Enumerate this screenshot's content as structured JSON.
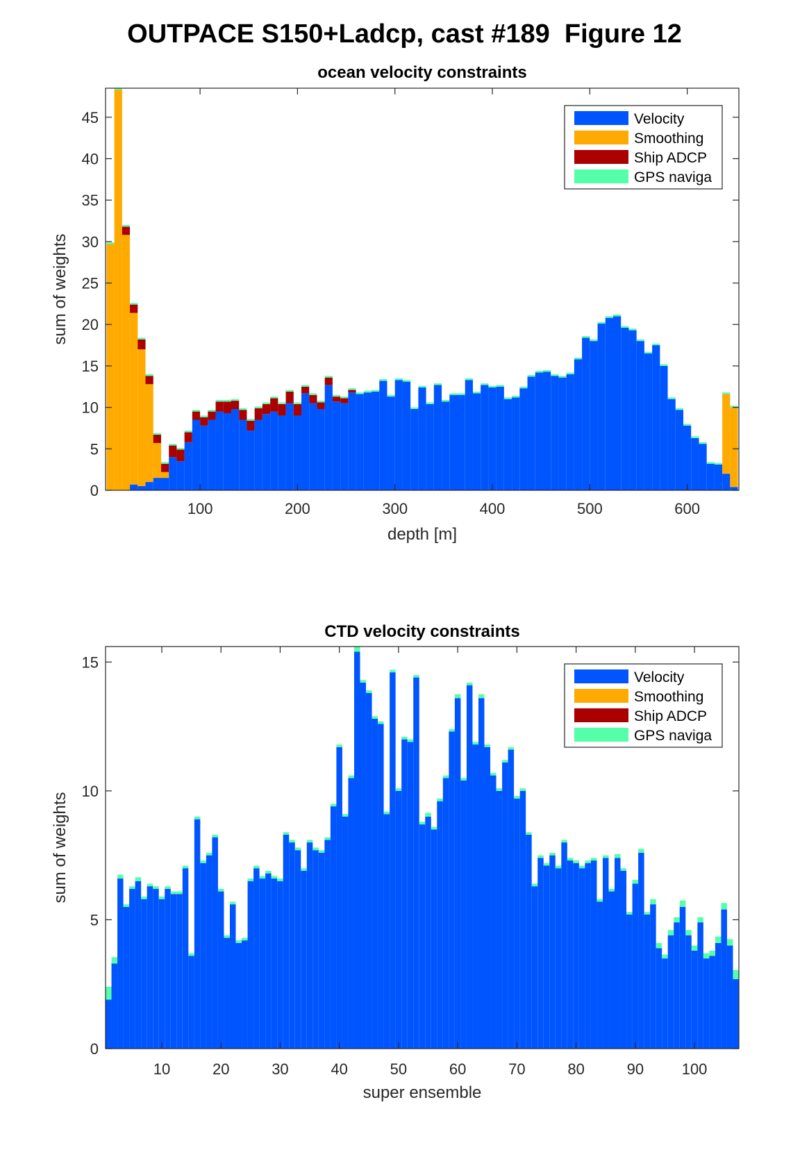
{
  "figure": {
    "title": "OUTPACE S150+Ladcp, cast #189  Figure 12"
  },
  "legend": {
    "items": [
      {
        "label": "Velocity",
        "color": "#0055FF"
      },
      {
        "label": "Smoothing",
        "color": "#FFAA00"
      },
      {
        "label": "Ship ADCP",
        "color": "#AA0000"
      },
      {
        "label": "GPS naviga",
        "color": "#55FFAA"
      }
    ]
  },
  "chart_data": [
    {
      "type": "bar",
      "stacked": true,
      "title": "ocean velocity constraints",
      "xlabel": "depth [m]",
      "ylabel": "sum of weights",
      "xlim": [
        3,
        653
      ],
      "ylim": [
        0,
        48.5
      ],
      "xticks": [
        100,
        200,
        300,
        400,
        500,
        600
      ],
      "yticks": [
        0,
        5,
        10,
        15,
        20,
        25,
        30,
        35,
        40,
        45
      ],
      "legend": "top-right",
      "bin_width": 8,
      "x": [
        8,
        16,
        24,
        32,
        40,
        48,
        56,
        64,
        72,
        80,
        88,
        96,
        104,
        112,
        120,
        128,
        136,
        144,
        152,
        160,
        168,
        176,
        184,
        192,
        200,
        208,
        216,
        224,
        232,
        240,
        248,
        256,
        264,
        272,
        280,
        288,
        296,
        304,
        312,
        320,
        328,
        336,
        344,
        352,
        360,
        368,
        376,
        384,
        392,
        400,
        408,
        416,
        424,
        432,
        440,
        448,
        456,
        464,
        472,
        480,
        488,
        496,
        504,
        512,
        520,
        528,
        536,
        544,
        552,
        560,
        568,
        576,
        584,
        592,
        600,
        608,
        616,
        624,
        632,
        640,
        648
      ],
      "series": [
        {
          "name": "Velocity",
          "values": [
            0,
            0,
            0,
            0.7,
            0.5,
            1.0,
            1.5,
            1.5,
            4,
            3.5,
            5.8,
            8.5,
            7.8,
            8.5,
            9.5,
            9.3,
            9.8,
            8.5,
            7.2,
            8.5,
            9.2,
            9.5,
            9.0,
            10.5,
            9.0,
            11.7,
            10.5,
            9.8,
            12.7,
            10.7,
            10.5,
            11.8,
            11.6,
            11.8,
            11.9,
            13.2,
            11.3,
            13.3,
            13.1,
            9.8,
            12.4,
            10.4,
            12.7,
            10.7,
            11.5,
            11.5,
            13.3,
            11.7,
            12.7,
            12.4,
            12.5,
            11.0,
            11.2,
            12.3,
            13.7,
            14.2,
            14.3,
            13.8,
            13.6,
            14.0,
            15.8,
            18.4,
            18.0,
            20.1,
            20.8,
            21.0,
            19.6,
            19.3,
            18.0,
            16.5,
            17.5,
            15.0,
            11.0,
            9.7,
            7.8,
            6.3,
            5.6,
            3.2,
            3.1,
            2.0,
            0.4
          ]
        },
        {
          "name": "Smoothing",
          "values": [
            29.7,
            48.3,
            30.8,
            20.7,
            16.5,
            11.8,
            4.2,
            0.7,
            0,
            0,
            0,
            0,
            0,
            0,
            0,
            0,
            0,
            0,
            0,
            0,
            0,
            0,
            0,
            0,
            0,
            0,
            0,
            0,
            0,
            0,
            0,
            0,
            0,
            0,
            0,
            0,
            0,
            0,
            0,
            0,
            0,
            0,
            0,
            0,
            0,
            0,
            0,
            0,
            0,
            0,
            0,
            0,
            0,
            0,
            0,
            0,
            0,
            0,
            0,
            0,
            0,
            0,
            0,
            0,
            0,
            0,
            0,
            0,
            0,
            0,
            0,
            0,
            0,
            0,
            0,
            0,
            0,
            0,
            0,
            9.6,
            9.6
          ]
        },
        {
          "name": "Ship ADCP",
          "values": [
            0,
            0,
            1.0,
            1.0,
            1.2,
            1.0,
            1.0,
            1.0,
            1.4,
            1.4,
            1.2,
            1.0,
            1.0,
            1.0,
            1.2,
            1.4,
            1.0,
            1.2,
            1.2,
            1.4,
            1.2,
            1.6,
            1.4,
            1.4,
            1.4,
            0.8,
            1.0,
            0.8,
            0.9,
            0.6,
            0.6,
            0.3,
            0,
            0,
            0,
            0,
            0,
            0,
            0,
            0,
            0,
            0,
            0,
            0,
            0,
            0,
            0,
            0,
            0,
            0,
            0,
            0,
            0,
            0,
            0,
            0,
            0,
            0,
            0,
            0,
            0,
            0,
            0,
            0,
            0,
            0,
            0,
            0,
            0,
            0,
            0,
            0,
            0,
            0,
            0,
            0,
            0,
            0,
            0,
            0,
            0
          ]
        },
        {
          "name": "GPS naviga",
          "values": [
            0.2,
            0.2,
            0.2,
            0.2,
            0.2,
            0.2,
            0.2,
            0.2,
            0.2,
            0.2,
            0.2,
            0.2,
            0.2,
            0.2,
            0.2,
            0.2,
            0.2,
            0.2,
            0.2,
            0.2,
            0.2,
            0.2,
            0.2,
            0.2,
            0.2,
            0.2,
            0.2,
            0.2,
            0.2,
            0.2,
            0.2,
            0.2,
            0.2,
            0.2,
            0.2,
            0.2,
            0.2,
            0.2,
            0.2,
            0.2,
            0.2,
            0.2,
            0.2,
            0.2,
            0.2,
            0.2,
            0.2,
            0.2,
            0.2,
            0.2,
            0.2,
            0.2,
            0.2,
            0.2,
            0.2,
            0.2,
            0.2,
            0.2,
            0.2,
            0.2,
            0.2,
            0.2,
            0.2,
            0.2,
            0.2,
            0.2,
            0.2,
            0.2,
            0.2,
            0.2,
            0.2,
            0.2,
            0.2,
            0.2,
            0.2,
            0.2,
            0.2,
            0.2,
            0.2,
            0.2,
            0.2
          ]
        }
      ]
    },
    {
      "type": "bar",
      "stacked": true,
      "title": "CTD velocity constraints",
      "xlabel": "super ensemble",
      "ylabel": "sum of weights",
      "xlim": [
        0.5,
        107.5
      ],
      "ylim": [
        0,
        15.6
      ],
      "xticks": [
        10,
        20,
        30,
        40,
        50,
        60,
        70,
        80,
        90,
        100
      ],
      "yticks": [
        0,
        5,
        10,
        15
      ],
      "legend": "top-right",
      "bin_width": 1,
      "x": [
        1,
        2,
        3,
        4,
        5,
        6,
        7,
        8,
        9,
        10,
        11,
        12,
        13,
        14,
        15,
        16,
        17,
        18,
        19,
        20,
        21,
        22,
        23,
        24,
        25,
        26,
        27,
        28,
        29,
        30,
        31,
        32,
        33,
        34,
        35,
        36,
        37,
        38,
        39,
        40,
        41,
        42,
        43,
        44,
        45,
        46,
        47,
        48,
        49,
        50,
        51,
        52,
        53,
        54,
        55,
        56,
        57,
        58,
        59,
        60,
        61,
        62,
        63,
        64,
        65,
        66,
        67,
        68,
        69,
        70,
        71,
        72,
        73,
        74,
        75,
        76,
        77,
        78,
        79,
        80,
        81,
        82,
        83,
        84,
        85,
        86,
        87,
        88,
        89,
        90,
        91,
        92,
        93,
        94,
        95,
        96,
        97,
        98,
        99,
        100,
        101,
        102,
        103,
        104,
        105,
        106,
        107
      ],
      "series": [
        {
          "name": "Velocity",
          "values": [
            1.9,
            3.3,
            6.6,
            5.5,
            6.2,
            6.5,
            5.8,
            6.3,
            6.2,
            5.8,
            6.2,
            6.0,
            6.0,
            7.0,
            3.6,
            8.9,
            7.2,
            7.5,
            8.2,
            6.1,
            4.3,
            5.6,
            4.1,
            4.2,
            6.5,
            7.0,
            6.6,
            6.8,
            6.6,
            6.5,
            8.3,
            8.0,
            7.7,
            6.9,
            8.0,
            7.7,
            7.6,
            8.1,
            9.4,
            11.7,
            9.0,
            10.5,
            15.4,
            14.2,
            13.8,
            12.8,
            12.6,
            9.1,
            14.6,
            10.0,
            12.0,
            11.9,
            14.4,
            8.7,
            9.0,
            8.5,
            9.6,
            10.5,
            12.3,
            13.6,
            10.4,
            14.1,
            11.8,
            13.6,
            11.7,
            10.6,
            10.0,
            11.1,
            11.6,
            9.7,
            10.0,
            8.3,
            6.3,
            7.4,
            7.1,
            7.5,
            7.0,
            8.0,
            7.3,
            7.2,
            7.0,
            7.2,
            7.3,
            5.7,
            7.4,
            6.1,
            7.4,
            6.9,
            5.2,
            6.4,
            7.6,
            5.2,
            5.6,
            3.9,
            3.5,
            4.4,
            4.9,
            5.5,
            4.4,
            3.8,
            4.9,
            3.5,
            3.6,
            4.1,
            5.4,
            4.0,
            2.7
          ]
        },
        {
          "name": "Smoothing",
          "values": [
            0,
            0,
            0,
            0,
            0,
            0,
            0,
            0,
            0,
            0,
            0,
            0,
            0,
            0,
            0,
            0,
            0,
            0,
            0,
            0,
            0,
            0,
            0,
            0,
            0,
            0,
            0,
            0,
            0,
            0,
            0,
            0,
            0,
            0,
            0,
            0,
            0,
            0,
            0,
            0,
            0,
            0,
            0,
            0,
            0,
            0,
            0,
            0,
            0,
            0,
            0,
            0,
            0,
            0,
            0,
            0,
            0,
            0,
            0,
            0,
            0,
            0,
            0,
            0,
            0,
            0,
            0,
            0,
            0,
            0,
            0,
            0,
            0,
            0,
            0,
            0,
            0,
            0,
            0,
            0,
            0,
            0,
            0,
            0,
            0,
            0,
            0,
            0,
            0,
            0,
            0,
            0,
            0,
            0,
            0,
            0,
            0,
            0,
            0,
            0,
            0,
            0,
            0,
            0,
            0,
            0,
            0
          ]
        },
        {
          "name": "Ship ADCP",
          "values": [
            0,
            0,
            0,
            0,
            0,
            0,
            0,
            0,
            0,
            0,
            0,
            0,
            0,
            0,
            0,
            0,
            0,
            0,
            0,
            0,
            0,
            0,
            0,
            0,
            0,
            0,
            0,
            0,
            0,
            0,
            0,
            0,
            0,
            0,
            0,
            0,
            0,
            0,
            0,
            0,
            0,
            0,
            0,
            0,
            0,
            0,
            0,
            0,
            0,
            0,
            0,
            0,
            0,
            0,
            0,
            0,
            0,
            0,
            0,
            0,
            0,
            0,
            0,
            0,
            0,
            0,
            0,
            0,
            0,
            0,
            0,
            0,
            0,
            0,
            0,
            0,
            0,
            0,
            0,
            0,
            0,
            0,
            0,
            0,
            0,
            0,
            0,
            0,
            0,
            0,
            0,
            0,
            0,
            0,
            0,
            0,
            0,
            0,
            0,
            0,
            0,
            0,
            0,
            0,
            0,
            0,
            0
          ]
        },
        {
          "name": "GPS naviga",
          "values": [
            0.5,
            0.25,
            0.15,
            0.1,
            0.1,
            0.15,
            0.1,
            0.1,
            0.1,
            0.1,
            0.1,
            0.1,
            0.1,
            0.1,
            0.1,
            0.1,
            0.1,
            0.1,
            0.1,
            0.1,
            0.1,
            0.1,
            0.1,
            0.1,
            0.1,
            0.1,
            0.1,
            0.1,
            0.1,
            0.1,
            0.1,
            0.1,
            0.1,
            0.1,
            0.1,
            0.1,
            0.1,
            0.1,
            0.1,
            0.1,
            0.1,
            0.1,
            0.2,
            0.1,
            0.1,
            0.1,
            0.1,
            0.1,
            0.1,
            0.1,
            0.1,
            0.1,
            0.1,
            0.1,
            0.15,
            0.1,
            0.1,
            0.1,
            0.1,
            0.15,
            0.1,
            0.1,
            0.1,
            0.15,
            0.1,
            0.1,
            0.1,
            0.1,
            0.1,
            0.1,
            0.1,
            0.1,
            0.1,
            0.1,
            0.1,
            0.1,
            0.1,
            0.1,
            0.1,
            0.1,
            0.1,
            0.1,
            0.1,
            0.1,
            0.1,
            0.1,
            0.15,
            0.1,
            0.1,
            0.15,
            0.15,
            0.1,
            0.2,
            0.2,
            0.15,
            0.2,
            0.2,
            0.25,
            0.2,
            0.2,
            0.2,
            0.2,
            0.2,
            0.25,
            0.25,
            0.25,
            0.35
          ]
        }
      ]
    }
  ]
}
